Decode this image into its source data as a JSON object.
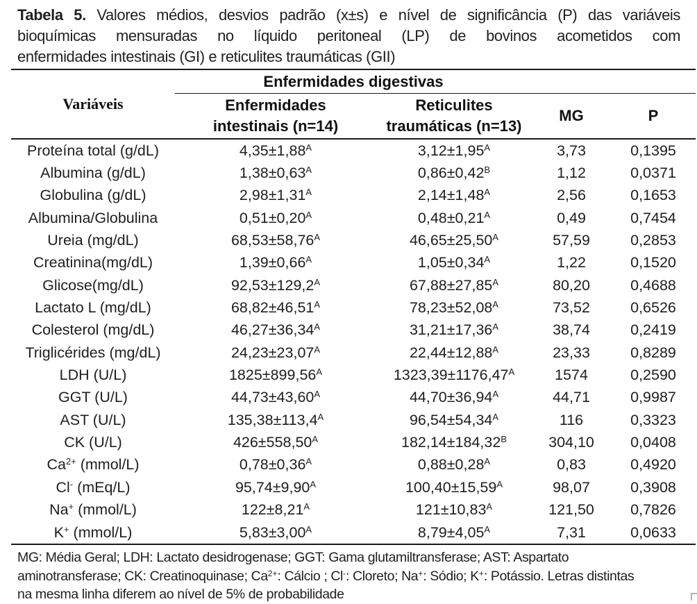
{
  "title": {
    "label": "Tabela 5.",
    "line1": "Valores médios, desvios padrão (x±s) e nível de significância (P) das variáveis",
    "line2": "bioquímicas mensuradas no líquido peritoneal (LP) de bovinos acometidos com",
    "line3": "enfermidades intestinais (GI) e reticulites traumáticas (GII)"
  },
  "table": {
    "header": {
      "variables": "Variáveis",
      "group": "Enfermidades digestivas",
      "gi_line1": "Enfermidades",
      "gi_line2": "intestinais (n=14)",
      "gii_line1": "Reticulites",
      "gii_line2": "traumáticas (n=13)",
      "mg": "MG",
      "p": "P"
    },
    "rows": [
      {
        "label": {
          "pre": "Proteína total (g/dL)",
          "sup": "",
          "post": ""
        },
        "gi": "4,35±1,88",
        "gi_sup": "A",
        "gii": "3,12±1,95",
        "gii_sup": "A",
        "mg": "3,73",
        "p": "0,1395"
      },
      {
        "label": {
          "pre": "Albumina (g/dL)",
          "sup": "",
          "post": ""
        },
        "gi": "1,38±0,63",
        "gi_sup": "A",
        "gii": "0,86±0,42",
        "gii_sup": "B",
        "mg": "1,12",
        "p": "0,0371"
      },
      {
        "label": {
          "pre": "Globulina (g/dL)",
          "sup": "",
          "post": ""
        },
        "gi": "2,98±1,31",
        "gi_sup": "A",
        "gii": "2,14±1,48",
        "gii_sup": "A",
        "mg": "2,56",
        "p": "0,1653"
      },
      {
        "label": {
          "pre": "Albumina/Globulina",
          "sup": "",
          "post": ""
        },
        "gi": "0,51±0,20",
        "gi_sup": "A",
        "gii": "0,48±0,21",
        "gii_sup": "A",
        "mg": "0,49",
        "p": "0,7454"
      },
      {
        "label": {
          "pre": "Ureia (mg/dL)",
          "sup": "",
          "post": ""
        },
        "gi": "68,53±58,76",
        "gi_sup": "A",
        "gii": "46,65±25,50",
        "gii_sup": "A",
        "mg": "57,59",
        "p": "0,2853"
      },
      {
        "label": {
          "pre": "Creatinina(mg/dL)",
          "sup": "",
          "post": ""
        },
        "gi": "1,39±0,66",
        "gi_sup": "A",
        "gii": "1,05±0,34",
        "gii_sup": "A",
        "mg": "1,22",
        "p": "0,1520"
      },
      {
        "label": {
          "pre": "Glicose(mg/dL)",
          "sup": "",
          "post": ""
        },
        "gi": "92,53±129,2",
        "gi_sup": "A",
        "gii": "67,88±27,85",
        "gii_sup": "A",
        "mg": "80,20",
        "p": "0,4688"
      },
      {
        "label": {
          "pre": "Lactato L (mg/dL)",
          "sup": "",
          "post": ""
        },
        "gi": "68,82±46,51",
        "gi_sup": "A",
        "gii": "78,23±52,08",
        "gii_sup": "A",
        "mg": "73,52",
        "p": "0,6526"
      },
      {
        "label": {
          "pre": "Colesterol (mg/dL)",
          "sup": "",
          "post": ""
        },
        "gi": "46,27±36,34",
        "gi_sup": "A",
        "gii": "31,21±17,36",
        "gii_sup": "A",
        "mg": "38,74",
        "p": "0,2419"
      },
      {
        "label": {
          "pre": "Triglicérides (mg/dL)",
          "sup": "",
          "post": ""
        },
        "gi": "24,23±23,07",
        "gi_sup": "A",
        "gii": "22,44±12,88",
        "gii_sup": "A",
        "mg": "23,33",
        "p": "0,8289"
      },
      {
        "label": {
          "pre": "LDH (U/L)",
          "sup": "",
          "post": ""
        },
        "gi": "1825±899,56",
        "gi_sup": "A",
        "gii": "1323,39±1176,47",
        "gii_sup": "A",
        "mg": "1574",
        "p": "0,2590"
      },
      {
        "label": {
          "pre": "GGT (U/L)",
          "sup": "",
          "post": ""
        },
        "gi": "44,73±43,60",
        "gi_sup": "A",
        "gii": "44,70±36,94",
        "gii_sup": "A",
        "mg": "44,71",
        "p": "0,9987"
      },
      {
        "label": {
          "pre": "AST (U/L)",
          "sup": "",
          "post": ""
        },
        "gi": "135,38±113,4",
        "gi_sup": "A",
        "gii": "96,54±54,34",
        "gii_sup": "A",
        "mg": "116",
        "p": "0,3323"
      },
      {
        "label": {
          "pre": "CK (U/L)",
          "sup": "",
          "post": ""
        },
        "gi": "426±558,50",
        "gi_sup": "A",
        "gii": "182,14±184,32",
        "gii_sup": "B",
        "mg": "304,10",
        "p": "0,0408"
      },
      {
        "label": {
          "pre": "Ca",
          "sup": "2+",
          "post": " (mmol/L)"
        },
        "gi": "0,78±0,36",
        "gi_sup": "A",
        "gii": "0,88±0,28",
        "gii_sup": "A",
        "mg": "0,83",
        "p": "0,4920"
      },
      {
        "label": {
          "pre": "Cl",
          "sup": "-",
          "post": " (mEq/L)"
        },
        "gi": "95,74±9,90",
        "gi_sup": "A",
        "gii": "100,40±15,59",
        "gii_sup": "A",
        "mg": "98,07",
        "p": "0,3908"
      },
      {
        "label": {
          "pre": "Na",
          "sup": "+",
          "post": " (mmol/L)"
        },
        "gi": "122±8,21",
        "gi_sup": "A",
        "gii": "121±10,83",
        "gii_sup": "A",
        "mg": "121,50",
        "p": "0,7826"
      },
      {
        "label": {
          "pre": "K",
          "sup": "+",
          "post": " (mmol/L)"
        },
        "gi": "5,83±3,00",
        "gi_sup": "A",
        "gii": "8,79±4,05",
        "gii_sup": "A",
        "mg": "7,31",
        "p": "0,0633"
      }
    ]
  },
  "footnote": {
    "lines": [
      [
        {
          "t": "MG: Média Geral; LDH: Lactato desidrogenase; GGT: Gama glutamiltransferase; AST: Aspartato"
        }
      ],
      [
        {
          "t": "aminotransferase; CK: Creatinoquinase; Ca"
        },
        {
          "sup": "2+"
        },
        {
          "t": ": Cálcio ; Cl"
        },
        {
          "sup": "-"
        },
        {
          "t": ": Cloreto; Na"
        },
        {
          "sup": "+"
        },
        {
          "t": ": Sódio; K"
        },
        {
          "sup": "+"
        },
        {
          "t": ": Potássio. Letras distintas"
        }
      ],
      [
        {
          "t": "na mesma linha diferem ao nível de 5% de probabilidade"
        }
      ]
    ]
  }
}
